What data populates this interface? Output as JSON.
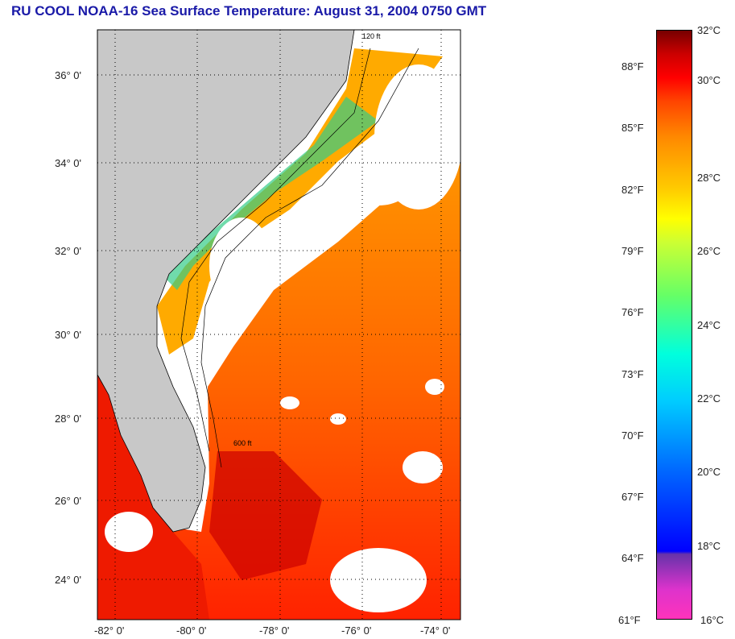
{
  "title": "RU COOL  NOAA-16  Sea Surface Temperature:  August 31, 2004 0750 GMT",
  "map": {
    "lat_labels": [
      "36° 0'",
      "34° 0'",
      "32° 0'",
      "30° 0'",
      "28° 0'",
      "26° 0'",
      "24° 0'"
    ],
    "lon_labels": [
      "-82° 0'",
      "-80° 0'",
      "-78° 0'",
      "-76° 0'",
      "-74° 0'"
    ],
    "contour_labels": [
      "120 ft",
      "600 ft"
    ]
  },
  "colorbar": {
    "fahrenheit": [
      "88°F",
      "85°F",
      "82°F",
      "79°F",
      "76°F",
      "73°F",
      "70°F",
      "67°F",
      "64°F",
      "61°F"
    ],
    "celsius": [
      "32°C",
      "30°C",
      "28°C",
      "26°C",
      "24°C",
      "22°C",
      "20°C",
      "18°C",
      "16°C"
    ]
  },
  "colors": {
    "title": "#1a1aa8",
    "land": "#c8c8c8",
    "warm": "#ff5500",
    "hot": "#ee1100"
  }
}
